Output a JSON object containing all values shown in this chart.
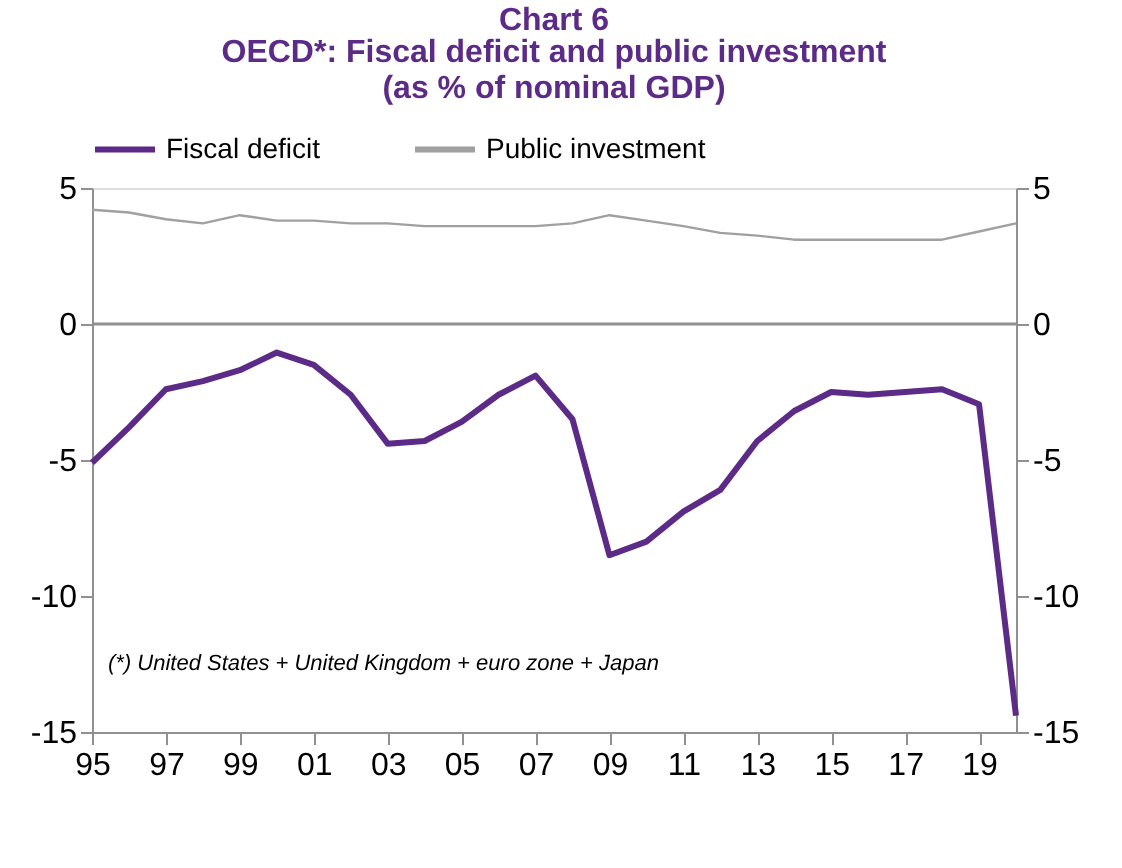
{
  "chart_data": {
    "type": "line",
    "title": "Chart 6",
    "subtitle": "OECD*:  Fiscal deficit and public investment\n(as % of nominal GDP)",
    "x": [
      1995,
      1996,
      1997,
      1998,
      1999,
      2000,
      2001,
      2002,
      2003,
      2004,
      2005,
      2006,
      2007,
      2008,
      2009,
      2010,
      2011,
      2012,
      2013,
      2014,
      2015,
      2016,
      2017,
      2018,
      2019,
      2020
    ],
    "series": [
      {
        "name": "Fiscal deficit",
        "color": "#5c2a87",
        "values": [
          -5.1,
          -3.8,
          -2.4,
          -2.1,
          -1.7,
          -1.05,
          -1.5,
          -2.6,
          -4.4,
          -4.3,
          -3.6,
          -2.6,
          -1.9,
          -3.5,
          -8.5,
          -8.0,
          -6.9,
          -6.1,
          -4.3,
          -3.2,
          -2.5,
          -2.6,
          -2.5,
          -2.4,
          -2.95,
          -14.4
        ]
      },
      {
        "name": "Public investment",
        "color": "#a0a0a0",
        "values": [
          4.2,
          4.1,
          3.85,
          3.7,
          4.0,
          3.8,
          3.8,
          3.7,
          3.7,
          3.6,
          3.6,
          3.6,
          3.6,
          3.7,
          4.0,
          3.8,
          3.6,
          3.35,
          3.25,
          3.1,
          3.1,
          3.1,
          3.1,
          3.1,
          3.4,
          3.7
        ]
      }
    ],
    "xlim": [
      1995,
      2020
    ],
    "xticks": [
      {
        "value": 1995,
        "label": "95"
      },
      {
        "value": 1997,
        "label": "97"
      },
      {
        "value": 1999,
        "label": "99"
      },
      {
        "value": 2001,
        "label": "01"
      },
      {
        "value": 2003,
        "label": "03"
      },
      {
        "value": 2005,
        "label": "05"
      },
      {
        "value": 2007,
        "label": "07"
      },
      {
        "value": 2009,
        "label": "09"
      },
      {
        "value": 2011,
        "label": "11"
      },
      {
        "value": 2013,
        "label": "13"
      },
      {
        "value": 2015,
        "label": "15"
      },
      {
        "value": 2017,
        "label": "17"
      },
      {
        "value": 2019,
        "label": "19"
      }
    ],
    "ylim": [
      -15,
      5
    ],
    "yticks": [
      -15,
      -10,
      -5,
      0,
      5
    ],
    "y2lim": [
      -15,
      5
    ],
    "y2ticks": [
      -15,
      -10,
      -5,
      0,
      5
    ],
    "ref_lines": [
      {
        "axis": "y",
        "value": 0,
        "label": null,
        "color": "#909090"
      }
    ],
    "annotations": [
      {
        "text": "(*) United States + United Kingdom + euro zone + Japan"
      }
    ],
    "legend": "top",
    "grid": false,
    "marker": "none",
    "line_style": "solid"
  }
}
